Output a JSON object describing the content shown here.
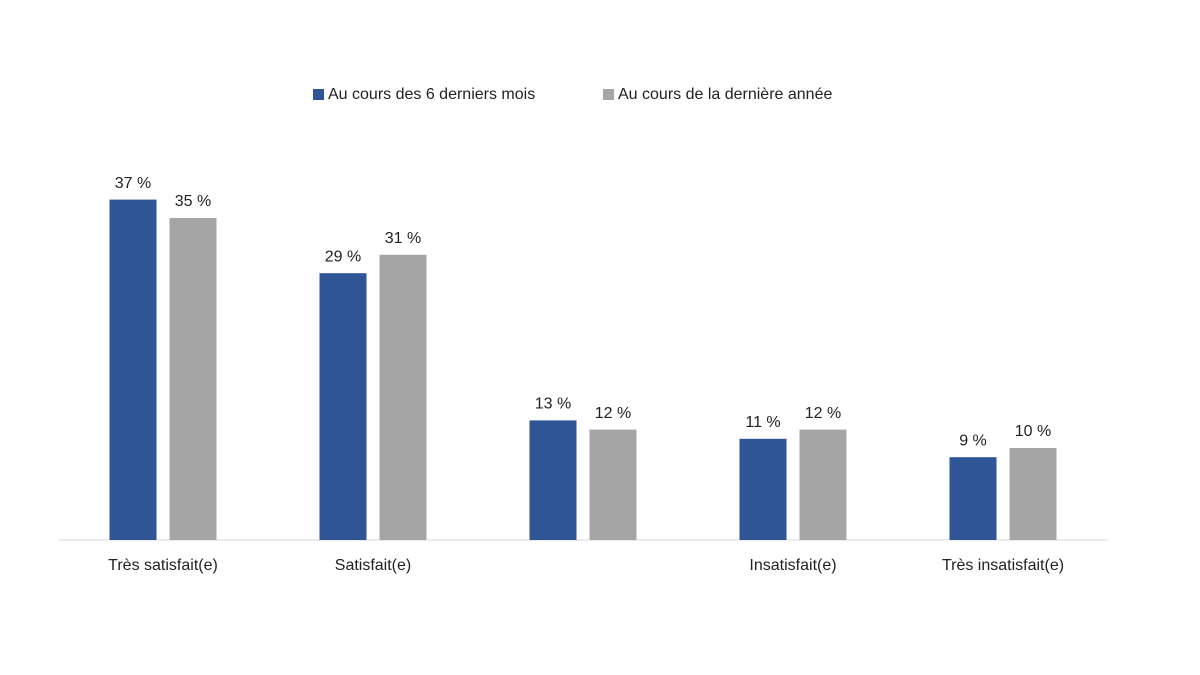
{
  "chart_data": {
    "type": "bar",
    "categories": [
      "Très satisfait(e)",
      "Satisfait(e)",
      null,
      "Insatisfait(e)",
      "Très insatisfait(e)"
    ],
    "series": [
      {
        "name": "Au cours des 6 derniers mois",
        "color": "#2f5597",
        "values": [
          37,
          29,
          13,
          11,
          9
        ],
        "value_labels": [
          "37 %",
          "29 %",
          "13 %",
          "11 %",
          "9 %"
        ]
      },
      {
        "name": "Au cours de la dernière année",
        "color": "#a5a5a5",
        "values": [
          35,
          31,
          12,
          12,
          10
        ],
        "value_labels": [
          "35 %",
          "31 %",
          "12 %",
          "12 %",
          "10 %"
        ]
      }
    ],
    "ylim": [
      0,
      40
    ],
    "legend": "top"
  }
}
